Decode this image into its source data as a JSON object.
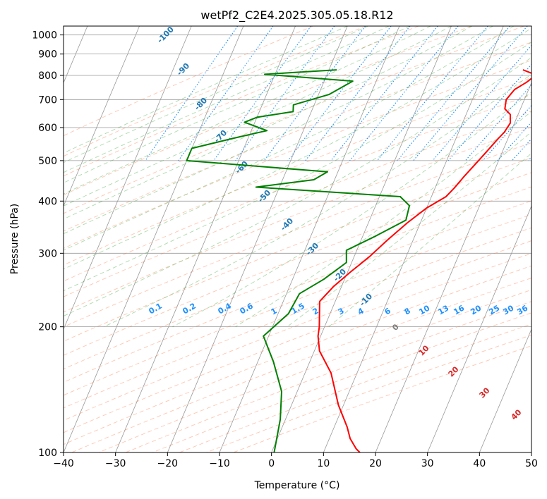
{
  "chart_data": {
    "type": "line",
    "subtype": "skew-T log-p diagram",
    "title": "wetPf2_C2E4.2025.305.05.18.R12",
    "xlabel": "Temperature (°C)",
    "ylabel": "Pressure (hPa)",
    "xlim": [
      -40,
      50
    ],
    "ylim": [
      1050,
      100
    ],
    "y_scale": "log",
    "x_ticks": [
      -40,
      -30,
      -20,
      -10,
      0,
      10,
      20,
      30,
      40,
      50
    ],
    "y_ticks": [
      100,
      200,
      300,
      400,
      500,
      600,
      700,
      800,
      900,
      1000
    ],
    "grid": true,
    "colors": {
      "temperature": "#ff0000",
      "dewpoint": "#008000",
      "isotherm": "#999999",
      "dry_adiabat": "#ff7f50",
      "moist_adiabat": "#2ca02c",
      "mixing_ratio": "#1e90ff",
      "dry_label": "#1f77b4",
      "moist_label": "#d62728"
    },
    "series": [
      {
        "role": "temperature",
        "points": [
          {
            "t": 17.3,
            "p": 825
          },
          {
            "t": 19.2,
            "p": 810
          },
          {
            "t": 20.0,
            "p": 795
          },
          {
            "t": 19.0,
            "p": 770
          },
          {
            "t": 17.3,
            "p": 740
          },
          {
            "t": 16.5,
            "p": 700
          },
          {
            "t": 17.0,
            "p": 665
          },
          {
            "t": 18.5,
            "p": 645
          },
          {
            "t": 19.2,
            "p": 615
          },
          {
            "t": 18.8,
            "p": 585
          },
          {
            "t": 18.0,
            "p": 560
          },
          {
            "t": 16.8,
            "p": 520
          },
          {
            "t": 15.8,
            "p": 490
          },
          {
            "t": 14.7,
            "p": 460
          },
          {
            "t": 13.7,
            "p": 430
          },
          {
            "t": 12.8,
            "p": 410
          },
          {
            "t": 10.0,
            "p": 385
          },
          {
            "t": 7.5,
            "p": 355
          },
          {
            "t": 5.0,
            "p": 322
          },
          {
            "t": 3.0,
            "p": 295
          },
          {
            "t": 0.5,
            "p": 270
          },
          {
            "t": -1.5,
            "p": 250
          },
          {
            "t": -3.0,
            "p": 230
          },
          {
            "t": -1.0,
            "p": 200
          },
          {
            "t": -0.5,
            "p": 190
          },
          {
            "t": 1.0,
            "p": 175
          },
          {
            "t": 5.0,
            "p": 155
          },
          {
            "t": 9.0,
            "p": 130
          },
          {
            "t": 12.5,
            "p": 115
          },
          {
            "t": 14.0,
            "p": 108
          },
          {
            "t": 16.0,
            "p": 102
          },
          {
            "t": 17.0,
            "p": 100
          }
        ]
      },
      {
        "role": "dewpoint",
        "points": [
          {
            "t": -18.5,
            "p": 825
          },
          {
            "t": -32.0,
            "p": 805
          },
          {
            "t": -14.5,
            "p": 775
          },
          {
            "t": -18.0,
            "p": 720
          },
          {
            "t": -24.0,
            "p": 680
          },
          {
            "t": -23.5,
            "p": 655
          },
          {
            "t": -30.0,
            "p": 635
          },
          {
            "t": -32.0,
            "p": 618
          },
          {
            "t": -27.0,
            "p": 590
          },
          {
            "t": -33.0,
            "p": 565
          },
          {
            "t": -40.0,
            "p": 535
          },
          {
            "t": -40.0,
            "p": 500
          },
          {
            "t": -12.0,
            "p": 470
          },
          {
            "t": -14.0,
            "p": 450
          },
          {
            "t": -24.5,
            "p": 432
          },
          {
            "t": 4.0,
            "p": 410
          },
          {
            "t": 6.5,
            "p": 390
          },
          {
            "t": 7.0,
            "p": 360
          },
          {
            "t": 2.5,
            "p": 330
          },
          {
            "t": -2.0,
            "p": 305
          },
          {
            "t": -1.0,
            "p": 285
          },
          {
            "t": -4.0,
            "p": 260
          },
          {
            "t": -7.5,
            "p": 240
          },
          {
            "t": -8.0,
            "p": 215
          },
          {
            "t": -11.0,
            "p": 190
          },
          {
            "t": -7.0,
            "p": 165
          },
          {
            "t": -3.0,
            "p": 140
          },
          {
            "t": -1.0,
            "p": 120
          },
          {
            "t": 0.5,
            "p": 100
          }
        ]
      }
    ],
    "dry_adiabat_labels": [
      "-100",
      "-90",
      "-80",
      "-70",
      "-60",
      "-50",
      "-40",
      "-30",
      "-20",
      "-10"
    ],
    "mixing_ratio_labels": [
      "0.1",
      "0.2",
      "0.4",
      "0.6",
      "1",
      "1.5",
      "2",
      "3",
      "4",
      "6",
      "8",
      "10",
      "13",
      "16",
      "20",
      "25",
      "30",
      "36"
    ],
    "moist_adiabat_labels": [
      "0",
      "10",
      "20",
      "30",
      "40"
    ]
  }
}
